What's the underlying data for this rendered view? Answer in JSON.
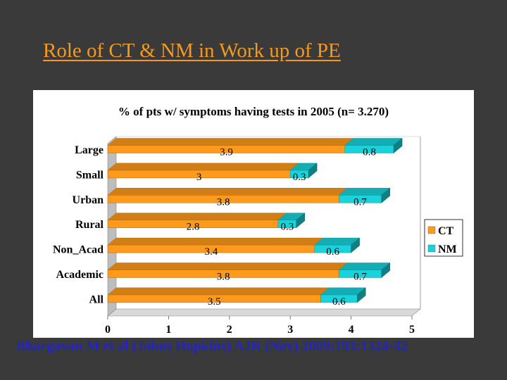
{
  "slide": {
    "title": "Role of CT & NM in Work up of PE",
    "citation": "Bhargavan M et al (Johns Hopkins) AJR (Nov) 2009;193:1324-32"
  },
  "colors": {
    "background": "#3a3a3a",
    "title": "#f39a1f",
    "citation": "#2323c6",
    "ct": "#ff9a1c",
    "nm": "#19d3dc"
  },
  "chart_data": {
    "type": "bar",
    "orientation": "horizontal",
    "stacked": true,
    "three_d": true,
    "title": "% of pts w/ symptoms having tests in 2005 (n= 3.270)",
    "categories": [
      "Large",
      "Small",
      "Urban",
      "Rural",
      "Non_Acad",
      "Academic",
      "All"
    ],
    "series": [
      {
        "name": "CT",
        "values": [
          3.9,
          3,
          3.8,
          2.8,
          3.4,
          3.8,
          3.5
        ]
      },
      {
        "name": "NM",
        "values": [
          0.8,
          0.3,
          0.7,
          0.3,
          0.6,
          0.7,
          0.6
        ]
      }
    ],
    "data_labels": {
      "CT": [
        "3.9",
        "3",
        "3.8",
        "2.8",
        "3.4",
        "3.8",
        "3.5"
      ],
      "NM": [
        "0.8",
        "0.3",
        "0.7",
        "0.3",
        "0.6",
        "0.7",
        "0.6"
      ]
    },
    "xlim": [
      0,
      5
    ],
    "x_ticks": [
      "0",
      "1",
      "2",
      "3",
      "4",
      "5"
    ],
    "xlabel": "",
    "ylabel": "",
    "legend": {
      "position": "right",
      "entries": [
        "CT",
        "NM"
      ]
    },
    "grid": false
  }
}
